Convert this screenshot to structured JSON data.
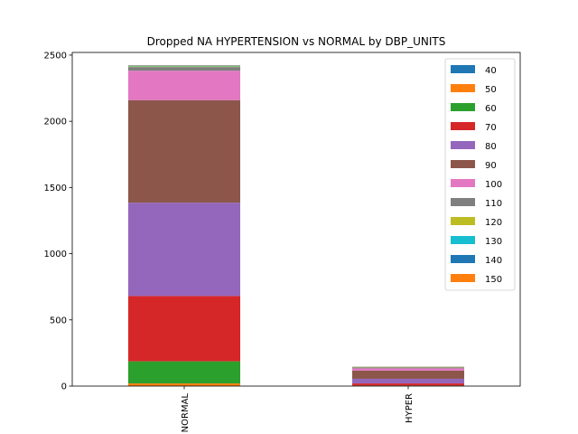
{
  "chart_data": {
    "type": "bar",
    "stacked": true,
    "title": "Dropped NA HYPERTENSION vs NORMAL by DBP_UNITS",
    "xlabel": "",
    "ylabel": "",
    "categories": [
      "NORMAL",
      "HYPER"
    ],
    "ylim": [
      0,
      2520
    ],
    "yticks": [
      0,
      500,
      1000,
      1500,
      2000,
      2500
    ],
    "grid": false,
    "legend_position": "top-right",
    "series": [
      {
        "name": "40",
        "color": "#1f77b4",
        "values": [
          1,
          0
        ]
      },
      {
        "name": "50",
        "color": "#ff7f0e",
        "values": [
          19,
          1
        ]
      },
      {
        "name": "60",
        "color": "#2ca02c",
        "values": [
          167,
          3
        ]
      },
      {
        "name": "70",
        "color": "#d62728",
        "values": [
          493,
          16
        ]
      },
      {
        "name": "80",
        "color": "#9467bd",
        "values": [
          705,
          35
        ]
      },
      {
        "name": "90",
        "color": "#8c564b",
        "values": [
          775,
          62
        ]
      },
      {
        "name": "100",
        "color": "#e377c2",
        "values": [
          222,
          17
        ]
      },
      {
        "name": "110",
        "color": "#7f7f7f",
        "values": [
          28,
          8
        ]
      },
      {
        "name": "120",
        "color": "#bcbd22",
        "values": [
          5,
          2
        ]
      },
      {
        "name": "130",
        "color": "#17becf",
        "values": [
          4,
          1
        ]
      },
      {
        "name": "140",
        "color": "#1f77b4",
        "values": [
          3,
          1
        ]
      },
      {
        "name": "150",
        "color": "#ff7f0e",
        "values": [
          2,
          1
        ]
      }
    ]
  }
}
